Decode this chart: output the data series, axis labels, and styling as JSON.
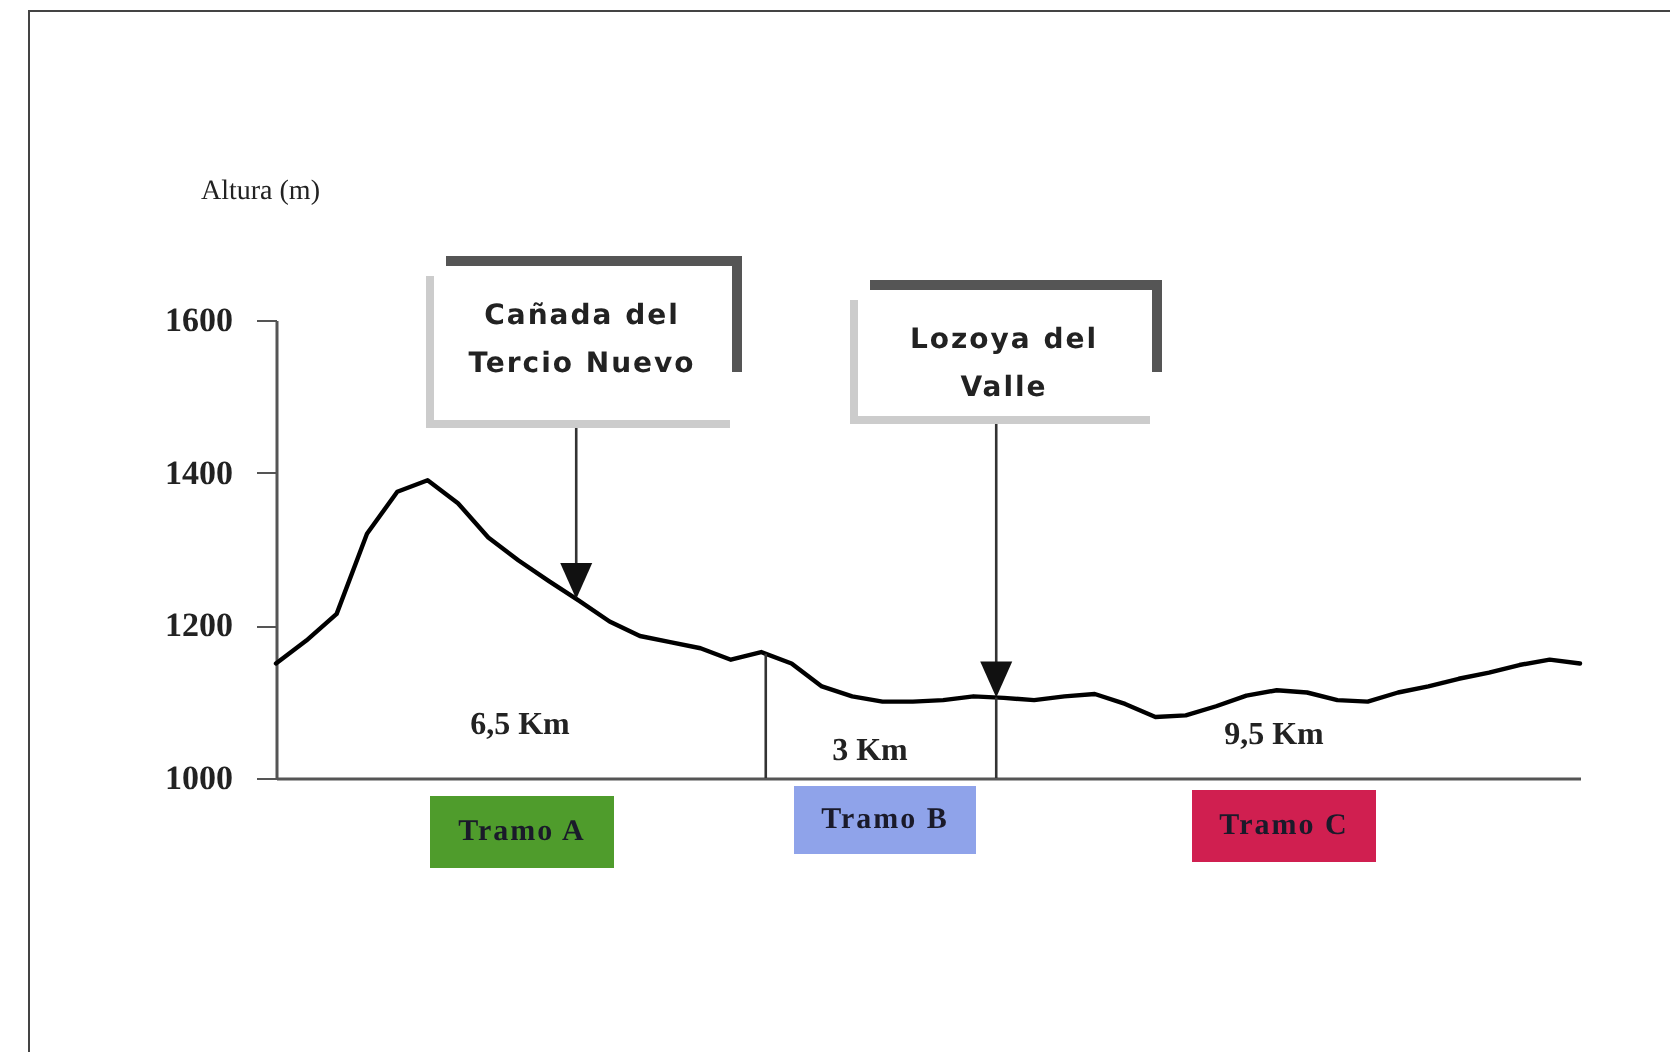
{
  "chart_data": {
    "type": "line",
    "ylabel": "Altura (m)",
    "categories": [
      null,
      null,
      null,
      null,
      null,
      null,
      null,
      null,
      null,
      null,
      null,
      null,
      null,
      null,
      null,
      null,
      null,
      null,
      null,
      null,
      null,
      null,
      null,
      null,
      null,
      null,
      null,
      null,
      null,
      null,
      null,
      null,
      null,
      null,
      null,
      null,
      null,
      null,
      null,
      null,
      null,
      null,
      null,
      null
    ],
    "values": [
      1150,
      1180,
      1215,
      1320,
      1375,
      1390,
      1360,
      1315,
      1285,
      1258,
      1232,
      1205,
      1186,
      1178,
      1170,
      1155,
      1165,
      1150,
      1120,
      1107,
      1100,
      1100,
      1102,
      1107,
      1105,
      1102,
      1107,
      1110,
      1097,
      1080,
      1082,
      1094,
      1108,
      1115,
      1112,
      1102,
      1100,
      1112,
      1120,
      1130,
      1138,
      1148,
      1155,
      1150
    ],
    "color": "#000000",
    "ylim": [
      1000,
      1600
    ],
    "yticks": [
      1000,
      1200,
      1400,
      1600
    ],
    "grid": false,
    "tick_labels": "y",
    "marker": "none",
    "line_style": "solid",
    "annotations": [
      "Cañada del\nTercio Nuevo",
      "Lozoya del\nValle",
      "6,5 Km",
      "3 Km",
      "9,5 Km",
      "Tramo A",
      "Tramo B",
      "Tramo C"
    ]
  }
}
